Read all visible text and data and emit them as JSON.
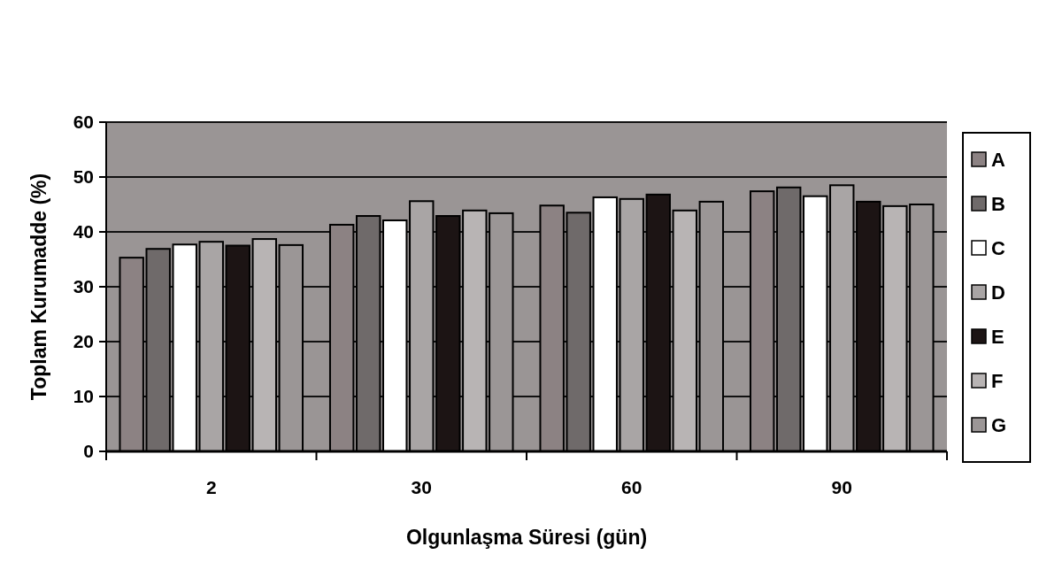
{
  "chart_data": {
    "type": "bar",
    "xlabel": "Olgunlaşma Süresi (gün)",
    "ylabel": "Toplam Kurumadde (%)",
    "categories": [
      "2",
      "30",
      "60",
      "90"
    ],
    "series": [
      {
        "name": "A",
        "color": "#8c8283",
        "values": [
          35.3,
          41.3,
          44.8,
          47.4
        ]
      },
      {
        "name": "B",
        "color": "#6f6a6a",
        "values": [
          36.9,
          42.9,
          43.5,
          48.1
        ]
      },
      {
        "name": "C",
        "color": "#ffffff",
        "values": [
          37.7,
          42.1,
          46.3,
          46.5
        ]
      },
      {
        "name": "D",
        "color": "#a9a5a5",
        "values": [
          38.2,
          45.6,
          46.0,
          48.5
        ]
      },
      {
        "name": "E",
        "color": "#1c1414",
        "values": [
          37.5,
          42.9,
          46.8,
          45.5
        ]
      },
      {
        "name": "F",
        "color": "#b8b4b4",
        "values": [
          38.7,
          43.9,
          43.9,
          44.7
        ]
      },
      {
        "name": "G",
        "color": "#9b9696",
        "values": [
          37.6,
          43.4,
          45.5,
          45.0
        ]
      }
    ],
    "ylim": [
      0,
      60
    ],
    "yticks": [
      0,
      10,
      20,
      30,
      40,
      50,
      60
    ],
    "grid": "y",
    "legend": "right"
  }
}
